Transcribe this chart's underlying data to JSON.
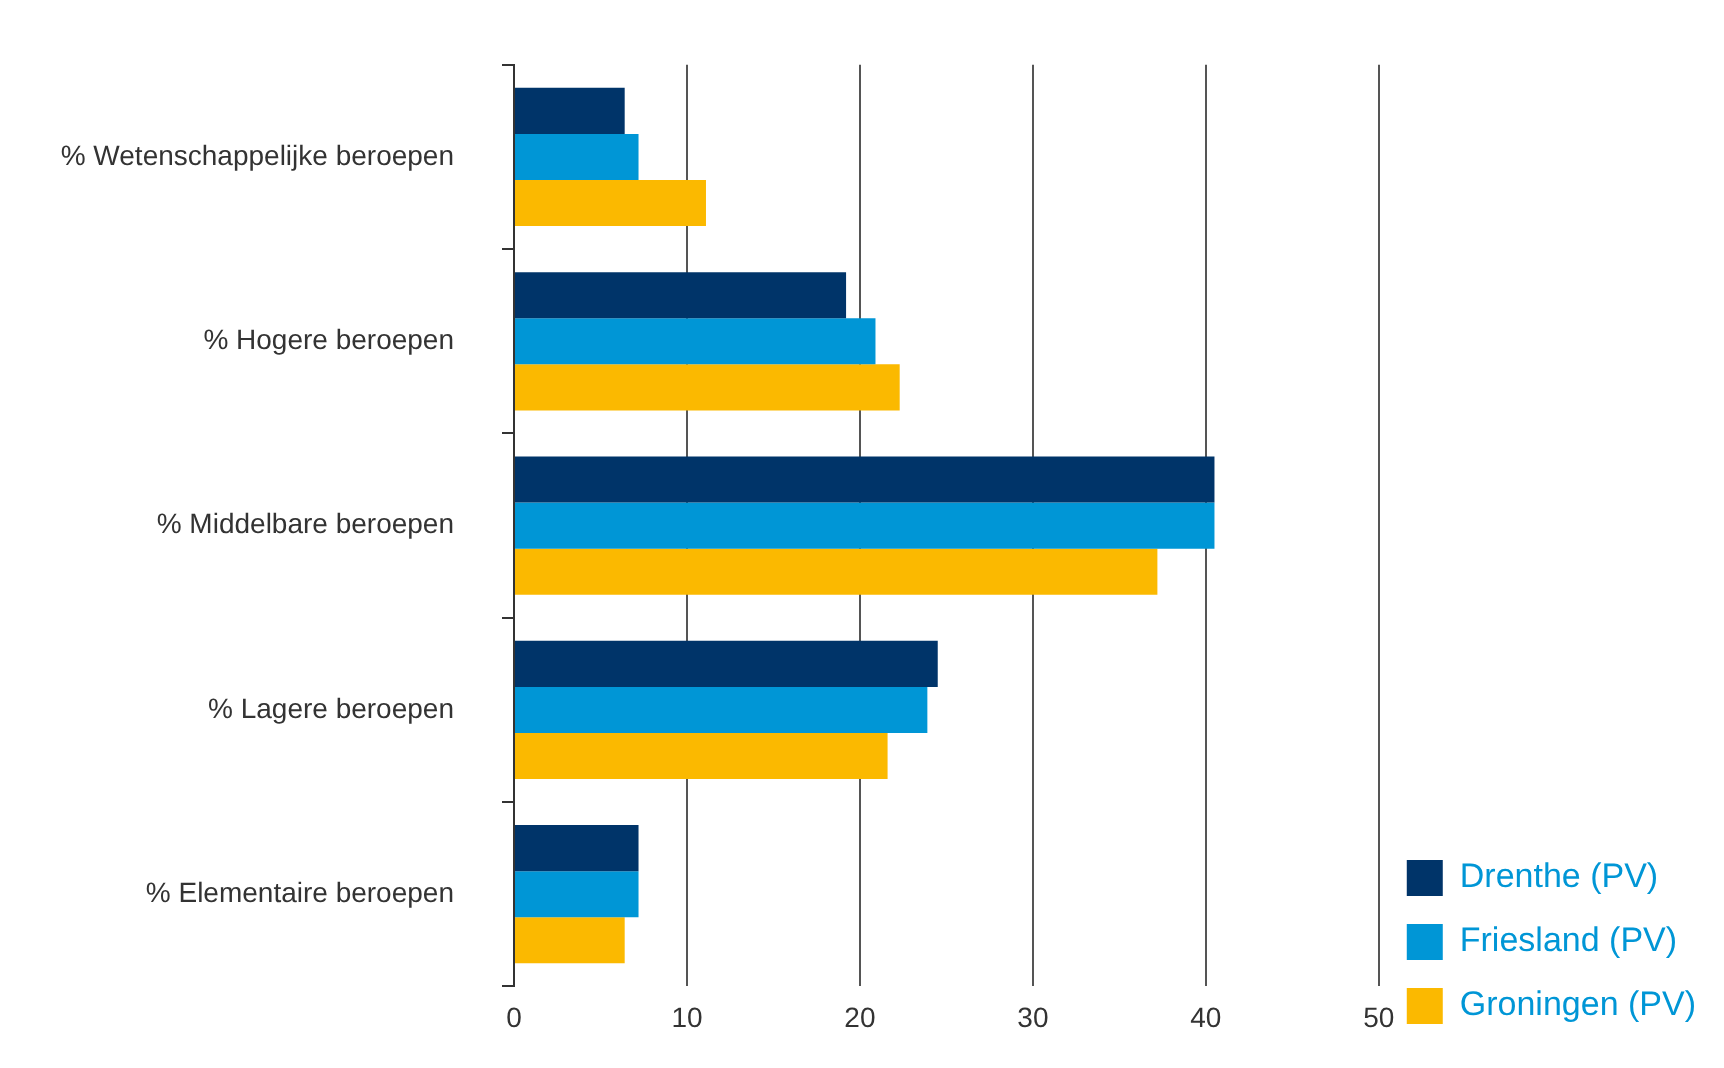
{
  "chart_data": {
    "type": "bar",
    "orientation": "horizontal",
    "categories": [
      "% Wetenschappelijke beroepen",
      "% Hogere beroepen",
      "% Middelbare beroepen",
      "% Lagere beroepen",
      "% Elementaire beroepen"
    ],
    "series": [
      {
        "name": "Drenthe (PV)",
        "color": "#003469",
        "values": [
          6.4,
          19.2,
          40.5,
          24.5,
          7.2
        ]
      },
      {
        "name": "Friesland (PV)",
        "color": "#0096d6",
        "values": [
          7.2,
          20.9,
          40.5,
          23.9,
          7.2
        ]
      },
      {
        "name": "Groningen (PV)",
        "color": "#fbb900",
        "values": [
          11.1,
          22.3,
          37.2,
          21.6,
          6.4
        ]
      }
    ],
    "xlim": [
      0,
      50
    ],
    "xticks": [
      0,
      10,
      20,
      30,
      40,
      50
    ],
    "grid": "x",
    "legend": "bottom right"
  }
}
